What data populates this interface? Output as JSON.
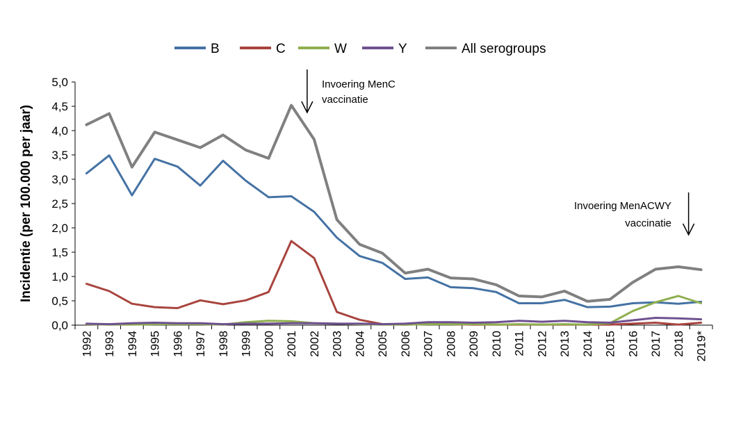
{
  "chart_data": {
    "type": "line",
    "title": "",
    "xlabel": "",
    "ylabel": "Incidentie (per 100.000 per jaar)",
    "ylim": [
      0,
      5
    ],
    "yticks": [
      "0,0",
      "0,5",
      "1,0",
      "1,5",
      "2,0",
      "2,5",
      "3,0",
      "3,5",
      "4,0",
      "4,5",
      "5,0"
    ],
    "grid": false,
    "legend_position": "top",
    "categories": [
      "1992",
      "1993",
      "1994",
      "1995",
      "1996",
      "1997",
      "1998",
      "1999",
      "2000",
      "2001",
      "2002",
      "2003",
      "2004",
      "2005",
      "2006",
      "2007",
      "2008",
      "2009",
      "2010",
      "2011",
      "2012",
      "2013",
      "2014",
      "2015",
      "2016",
      "2017",
      "2018",
      "2019*"
    ],
    "series": [
      {
        "name": "B",
        "color": "#4472A4",
        "values": [
          3.12,
          3.49,
          2.67,
          3.42,
          3.26,
          2.87,
          3.38,
          2.97,
          2.63,
          2.65,
          2.33,
          1.8,
          1.42,
          1.28,
          0.95,
          0.98,
          0.78,
          0.76,
          0.68,
          0.45,
          0.45,
          0.52,
          0.37,
          0.38,
          0.45,
          0.47,
          0.44,
          0.48
        ]
      },
      {
        "name": "C",
        "color": "#A8443E",
        "values": [
          0.85,
          0.7,
          0.44,
          0.37,
          0.35,
          0.51,
          0.43,
          0.51,
          0.68,
          1.73,
          1.38,
          0.27,
          0.11,
          0.02,
          0.01,
          0.02,
          0.02,
          0.01,
          0.01,
          0.01,
          0.01,
          0.01,
          0.01,
          0.01,
          0.03,
          0.05,
          0.01,
          0.05
        ]
      },
      {
        "name": "W",
        "color": "#8FAF4F",
        "values": [
          0.02,
          0.01,
          0.01,
          0.02,
          0.02,
          0.02,
          0.01,
          0.06,
          0.09,
          0.08,
          0.04,
          0.03,
          0.02,
          0.01,
          0.01,
          0.02,
          0.02,
          0.02,
          0.01,
          0.02,
          0.01,
          0.02,
          0.01,
          0.04,
          0.29,
          0.47,
          0.6,
          0.45
        ]
      },
      {
        "name": "Y",
        "color": "#6E5190",
        "values": [
          0.03,
          0.02,
          0.04,
          0.05,
          0.04,
          0.04,
          0.02,
          0.03,
          0.03,
          0.04,
          0.04,
          0.03,
          0.03,
          0.02,
          0.03,
          0.06,
          0.06,
          0.05,
          0.06,
          0.09,
          0.07,
          0.09,
          0.06,
          0.05,
          0.1,
          0.15,
          0.14,
          0.12
        ]
      },
      {
        "name": "All serogroups",
        "color": "#808080",
        "values": [
          4.12,
          4.35,
          3.25,
          3.97,
          3.81,
          3.65,
          3.91,
          3.6,
          3.43,
          4.52,
          3.82,
          2.17,
          1.66,
          1.48,
          1.07,
          1.15,
          0.97,
          0.95,
          0.83,
          0.6,
          0.58,
          0.7,
          0.49,
          0.53,
          0.88,
          1.15,
          1.2,
          1.14
        ]
      }
    ],
    "annotations": [
      {
        "lines": [
          "Invoering MenC",
          "vaccinatie"
        ],
        "align": "start",
        "arrow_year": "2002"
      },
      {
        "lines": [
          "Invoering MenACWY",
          "vaccinatie"
        ],
        "align": "end",
        "arrow_year": "2019*"
      }
    ]
  }
}
